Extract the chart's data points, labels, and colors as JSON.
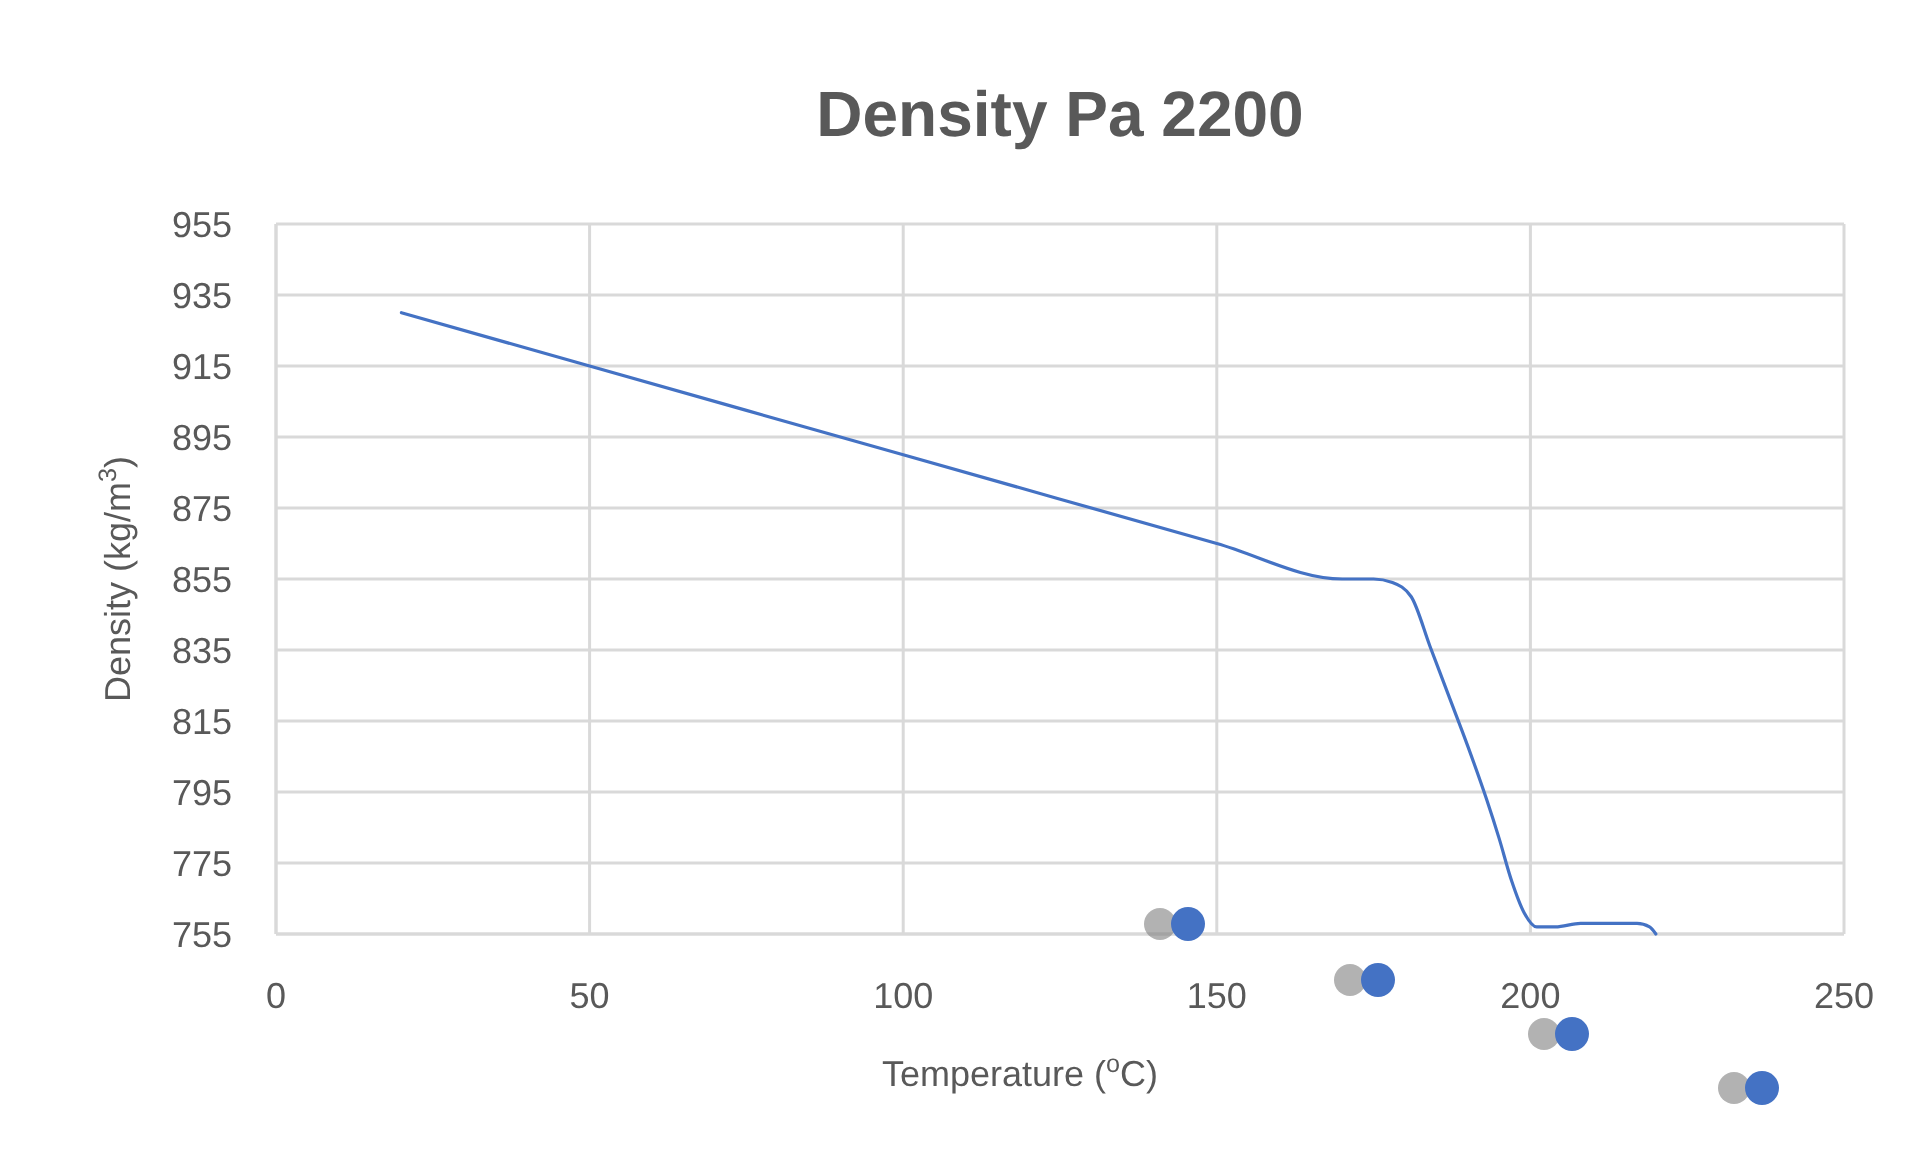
{
  "chart_data": {
    "type": "line",
    "title": "Density Pa 2200",
    "xlabel": "Temperature ($^{o}$C)",
    "ylabel": "Density (kg/m$^{3}$)",
    "series": [
      {
        "color": "#4472c4",
        "x": [
          20,
          50,
          100,
          150,
          170,
          175,
          178,
          181,
          184,
          187,
          190,
          193,
          195,
          197,
          199,
          201,
          204,
          208,
          213,
          217,
          219,
          220
        ],
        "values": [
          930,
          915,
          890,
          865,
          855,
          855,
          854,
          850,
          836,
          822,
          808,
          793,
          782,
          770,
          761,
          757,
          757,
          758,
          758,
          758,
          757,
          755
        ]
      }
    ],
    "xlim": [
      0,
      250
    ],
    "xticks": [
      0,
      50,
      100,
      150,
      200,
      250
    ],
    "ylim": [
      755,
      955
    ],
    "yticks": [
      755,
      775,
      795,
      815,
      835,
      855,
      875,
      895,
      915,
      935,
      955
    ],
    "grid": true,
    "marker": "none",
    "line_style": "solid"
  }
}
